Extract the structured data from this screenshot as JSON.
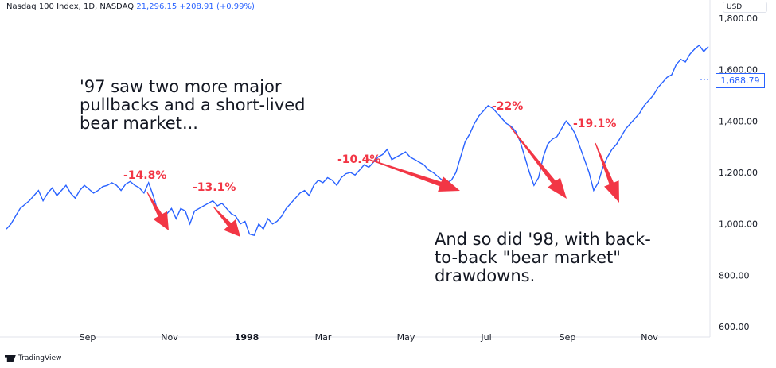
{
  "header": {
    "title": "Nasdaq 100 Index, 1D, NASDAQ",
    "price": "21,296.15",
    "change": "+208.91 (+0.99%)",
    "currency": "USD"
  },
  "annotations": {
    "top_left": [
      "'97 saw two more major",
      "pullbacks and a short-lived",
      "bear market..."
    ],
    "bottom_right": [
      "And so did '98, with back-",
      "to-back \"bear market\"",
      "drawdowns."
    ]
  },
  "drawdown_labels": [
    "-14.8%",
    "-13.1%",
    "-10.4%",
    "-22%",
    "-19.1%"
  ],
  "last_price_label": "1,688.79",
  "footer": {
    "brand": "TradingView"
  },
  "colors": {
    "line": "#2962ff",
    "arrow": "#f23645",
    "text": "#131722"
  },
  "chart_data": {
    "type": "line",
    "x_ticks": [
      "Sep",
      "Nov",
      "1998",
      "Mar",
      "May",
      "Jul",
      "Sep",
      "Nov"
    ],
    "y_ticks": [
      "600.00",
      "800.00",
      "1,000.00",
      "1,200.00",
      "1,400.00",
      "1,600.00",
      "1,800.00"
    ],
    "ylim": [
      560,
      1840
    ],
    "series": [
      {
        "values": [
          980,
          1000,
          1030,
          1060,
          1075,
          1090,
          1110,
          1130,
          1090,
          1120,
          1140,
          1110,
          1130,
          1150,
          1120,
          1100,
          1130,
          1150,
          1135,
          1120,
          1130,
          1145,
          1150,
          1160,
          1150,
          1130,
          1155,
          1165,
          1150,
          1140,
          1120,
          1160,
          1110,
          1050,
          1000,
          1040,
          1060,
          1020,
          1060,
          1050,
          1000,
          1050,
          1060,
          1070,
          1080,
          1090,
          1070,
          1080,
          1060,
          1040,
          1030,
          1000,
          1010,
          960,
          955,
          1000,
          980,
          1020,
          1000,
          1010,
          1030,
          1060,
          1080,
          1100,
          1120,
          1130,
          1110,
          1150,
          1170,
          1160,
          1180,
          1170,
          1150,
          1180,
          1195,
          1200,
          1190,
          1210,
          1230,
          1220,
          1240,
          1260,
          1270,
          1290,
          1250,
          1260,
          1270,
          1280,
          1260,
          1250,
          1240,
          1230,
          1210,
          1200,
          1185,
          1170,
          1160,
          1170,
          1200,
          1260,
          1320,
          1350,
          1390,
          1420,
          1440,
          1460,
          1450,
          1430,
          1410,
          1390,
          1380,
          1360,
          1320,
          1260,
          1200,
          1150,
          1180,
          1260,
          1310,
          1330,
          1340,
          1370,
          1400,
          1380,
          1350,
          1300,
          1250,
          1200,
          1130,
          1160,
          1220,
          1260,
          1290,
          1310,
          1340,
          1370,
          1390,
          1410,
          1430,
          1460,
          1480,
          1500,
          1530,
          1550,
          1570,
          1580,
          1620,
          1640,
          1630,
          1660,
          1680,
          1695,
          1670,
          1690
        ]
      }
    ]
  }
}
